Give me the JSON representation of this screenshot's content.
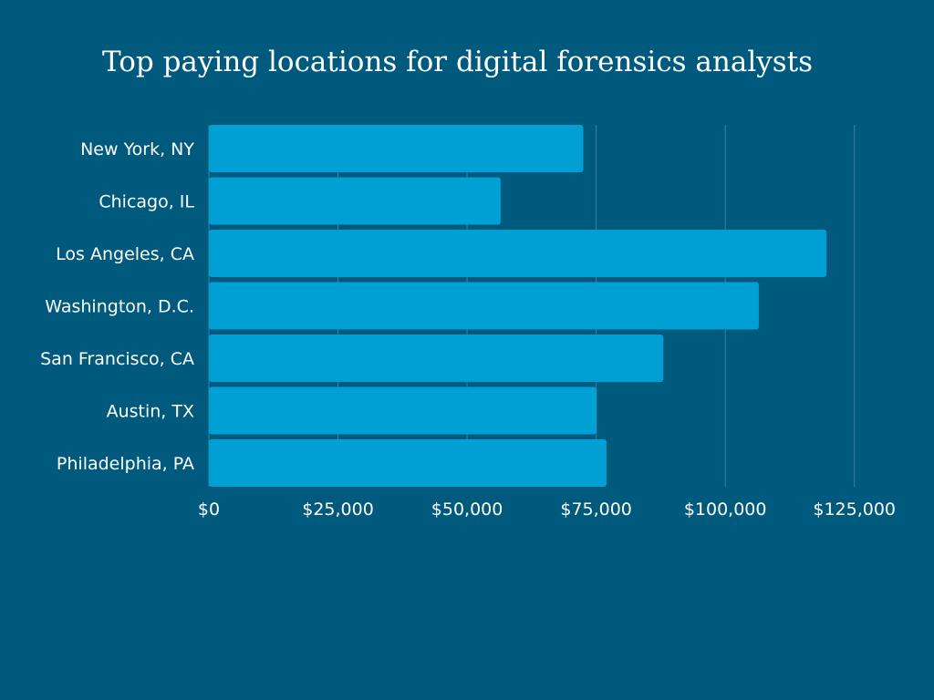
{
  "chart_data": {
    "type": "bar",
    "orientation": "horizontal",
    "title": "Top paying locations for digital forensics analysts",
    "categories": [
      "New York, NY",
      "Chicago, IL",
      "Los Angeles, CA",
      "Washington, D.C.",
      "San Francisco, CA",
      "Austin, TX",
      "Philadelphia, PA"
    ],
    "values": [
      72500,
      56500,
      119600,
      106500,
      88000,
      75100,
      77000
    ],
    "xlim": [
      0,
      125000
    ],
    "xticks": [
      0,
      25000,
      50000,
      75000,
      100000,
      125000
    ],
    "xtick_labels": [
      "$0",
      "$25,000",
      "$50,000",
      "$75,000",
      "$100,000",
      "$125,000"
    ],
    "grid": "vertical",
    "legend": "none",
    "colors": {
      "background": "#005a7e",
      "bar": "#009fd4",
      "grid": "#3b7fa0",
      "text": "#ffffff"
    }
  }
}
